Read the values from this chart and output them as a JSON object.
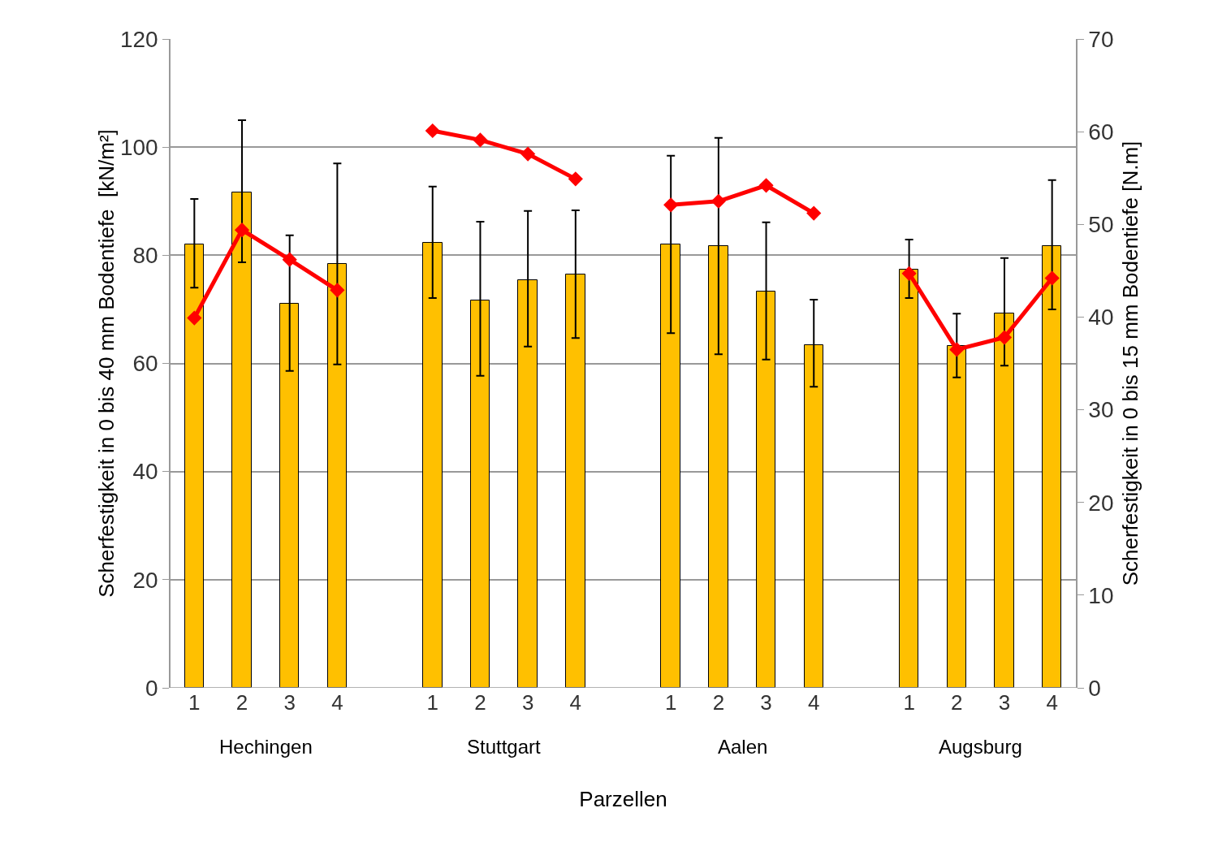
{
  "chart_data": {
    "type": "bar",
    "xlabel": "Parzellen",
    "ylabel": "Scherfestigkeit in 0 bis 40 mm Bodentiefe  [kN/m²]",
    "y2label": "Scherfestigkeit in 0 bis 15 mm Bodentiefe [N.m]",
    "categories": [
      "1",
      "2",
      "3",
      "4",
      null,
      "1",
      "2",
      "3",
      "4",
      null,
      "1",
      "2",
      "3",
      "4",
      null,
      "1",
      "2",
      "3",
      "4"
    ],
    "series": [
      {
        "color": "#ffc000",
        "values": [
          82.0,
          91.6,
          71.0,
          78.4,
          null,
          82.3,
          71.6,
          75.4,
          76.4,
          null,
          82.0,
          81.7,
          73.3,
          63.4,
          null,
          77.4,
          63.2,
          69.2,
          81.7
        ],
        "errors": [
          [
            74.0,
            90.4
          ],
          [
            78.7,
            105.0
          ],
          [
            58.6,
            83.7
          ],
          [
            59.8,
            97.0
          ],
          null,
          [
            72.1,
            92.7
          ],
          [
            57.7,
            86.2
          ],
          [
            63.1,
            88.2
          ],
          [
            64.7,
            88.3
          ],
          null,
          [
            65.6,
            98.4
          ],
          [
            61.7,
            101.7
          ],
          [
            60.7,
            86.1
          ],
          [
            55.7,
            71.8
          ],
          null,
          [
            72.1,
            82.9
          ],
          [
            57.4,
            69.2
          ],
          [
            59.6,
            79.5
          ],
          [
            70.0,
            93.9
          ]
        ]
      },
      {
        "type": "line",
        "axis": "y2",
        "color": "#ff0000",
        "marker": "diamond",
        "values": [
          39.9,
          49.4,
          46.2,
          42.9,
          null,
          60.1,
          59.1,
          57.6,
          54.9,
          null,
          52.1,
          52.5,
          54.2,
          51.2,
          null,
          44.7,
          36.5,
          37.8,
          44.2
        ]
      }
    ],
    "ylim": [
      0,
      120
    ],
    "yticks": [
      0,
      20,
      40,
      60,
      80,
      100,
      120
    ],
    "y2lim": [
      0,
      70
    ],
    "y2ticks": [
      0,
      10,
      20,
      30,
      40,
      50,
      60,
      70
    ],
    "grid": "y",
    "legend": false,
    "annotations": [
      "Hechingen",
      "Stuttgart",
      "Aalen",
      "Augsburg"
    ]
  }
}
